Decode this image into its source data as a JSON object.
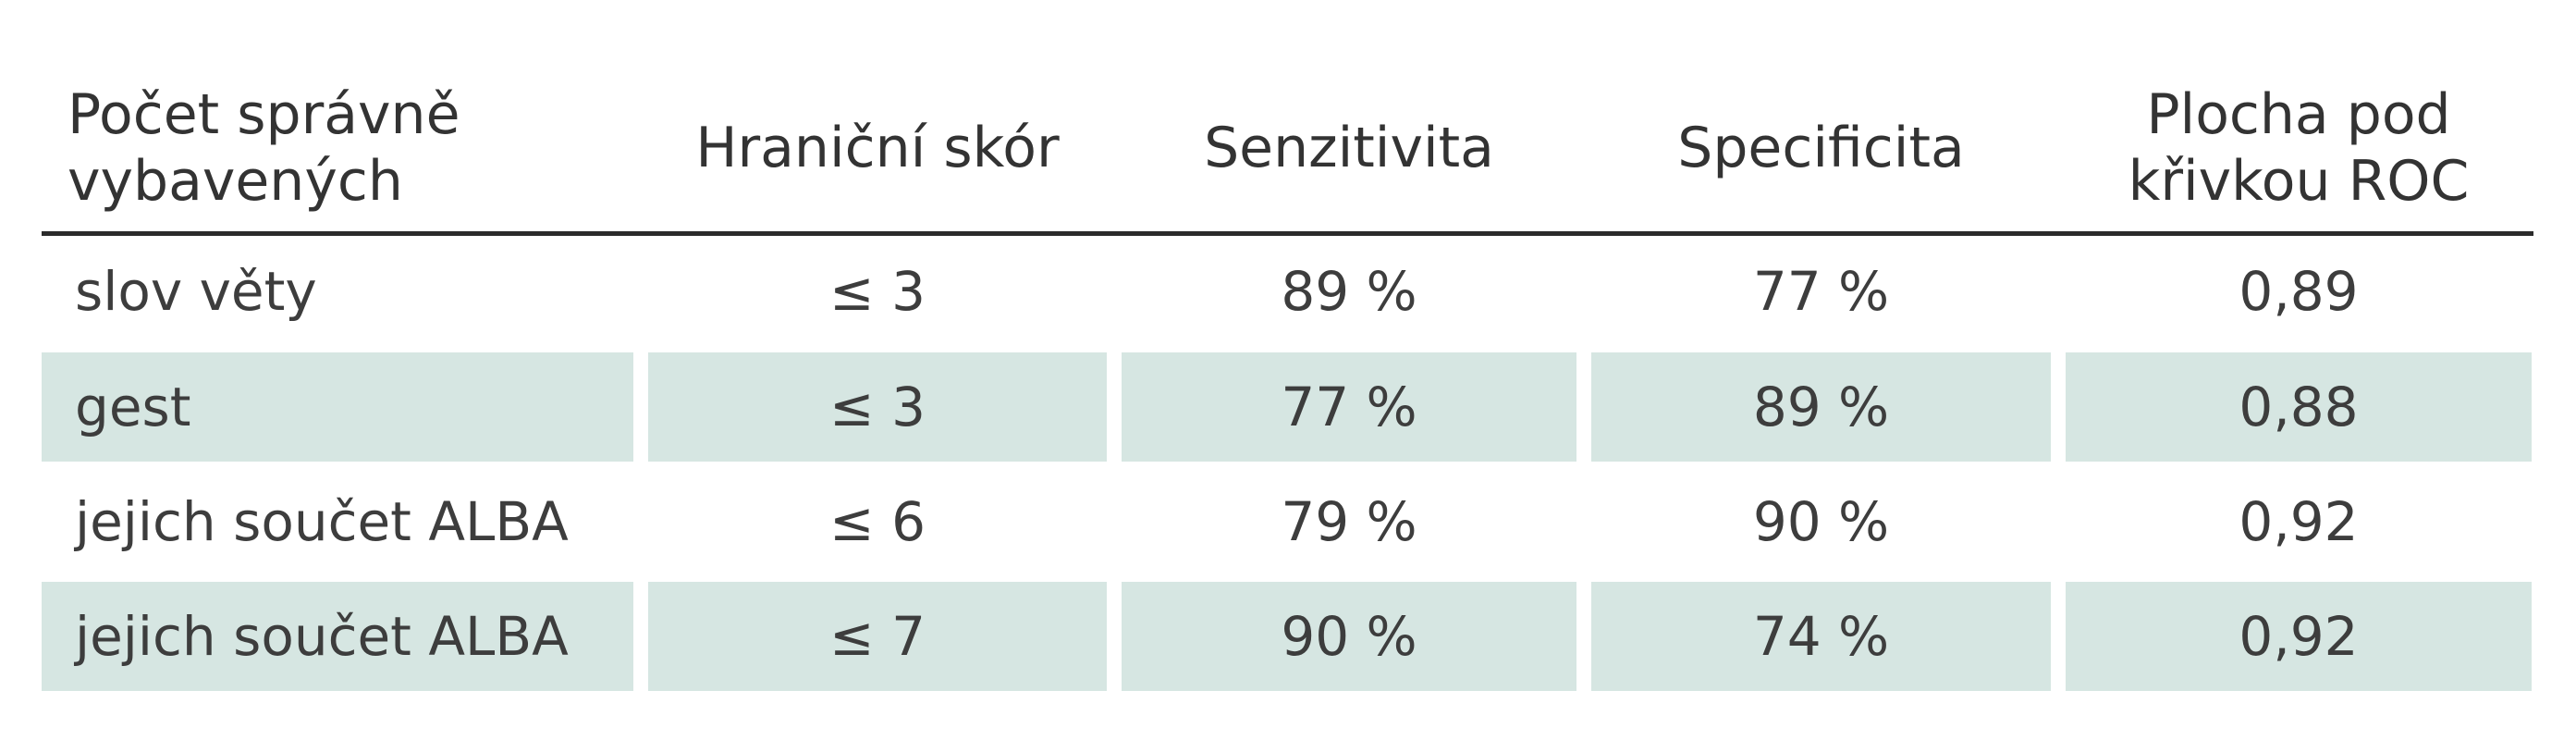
{
  "table": {
    "headers": [
      "Počet správně\nvybavených",
      "Hraniční skór",
      "Senzitivita",
      "Specificita",
      "Plocha pod\nkřivkou ROC"
    ],
    "rows": [
      [
        "slov věty",
        "≤ 3",
        "89 %",
        "77 %",
        "0,89"
      ],
      [
        "gest",
        "≤ 3",
        "77 %",
        "89 %",
        "0,88"
      ],
      [
        "jejich součet ALBA",
        "≤ 6",
        "79 %",
        "90 %",
        "0,92"
      ],
      [
        "jejich součet ALBA",
        "≤ 7",
        "90 %",
        "74 %",
        "0,92"
      ]
    ],
    "colors": {
      "shaded_row": "#d6e6e2",
      "header_rule": "#2b2b2b"
    }
  }
}
